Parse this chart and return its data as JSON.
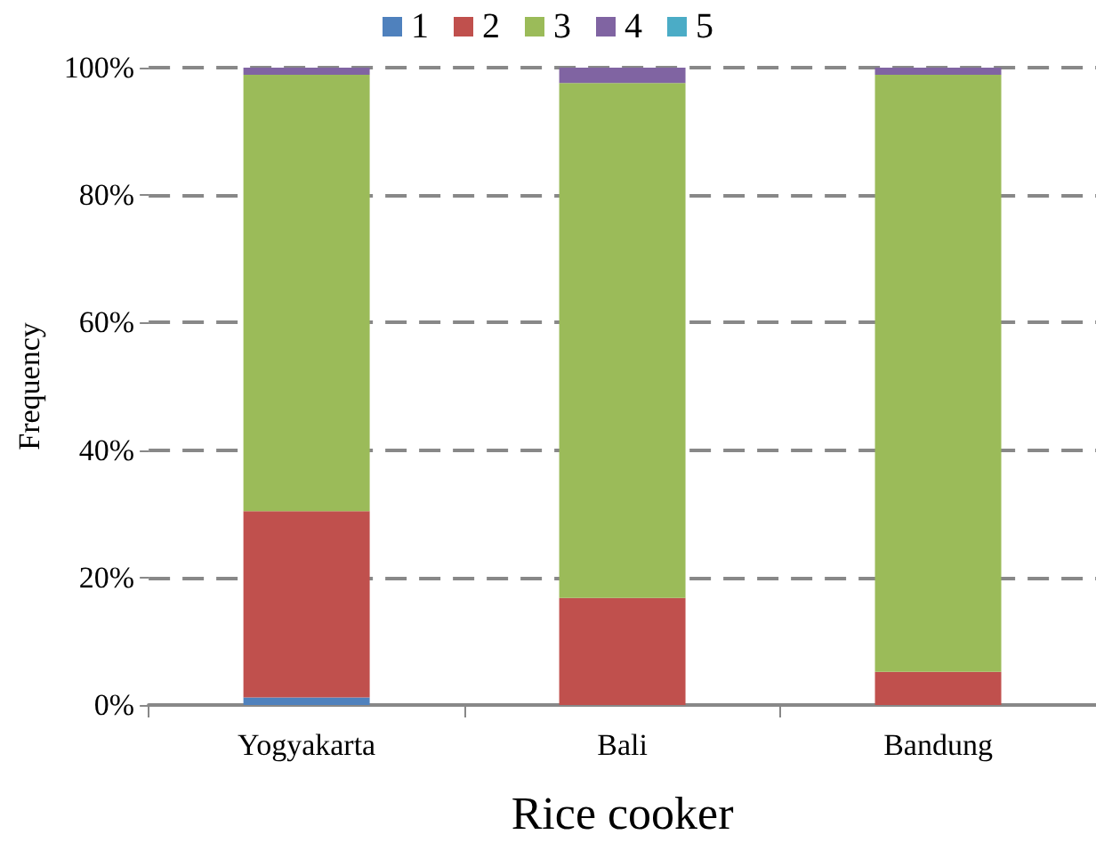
{
  "chart_data": {
    "type": "bar",
    "stacked": true,
    "xlabel": "Rice cooker",
    "ylabel": "Frequency",
    "categories": [
      "Yogyakarta",
      "Bali",
      "Bandung"
    ],
    "series": [
      {
        "name": "1",
        "color": "#4f81bd",
        "values": [
          1.2,
          0,
          0
        ]
      },
      {
        "name": "2",
        "color": "#c0504d",
        "values": [
          29.2,
          16.8,
          5.2
        ]
      },
      {
        "name": "3",
        "color": "#9bbb59",
        "values": [
          68.5,
          80.8,
          93.7
        ]
      },
      {
        "name": "4",
        "color": "#8064a2",
        "values": [
          1.1,
          2.4,
          1.1
        ]
      },
      {
        "name": "5",
        "color": "#4bacc6",
        "values": [
          0,
          0,
          0
        ]
      }
    ],
    "ylim": [
      0,
      100
    ],
    "yticks": [
      {
        "value": 0,
        "label": "0%"
      },
      {
        "value": 20,
        "label": "20%"
      },
      {
        "value": 40,
        "label": "40%"
      },
      {
        "value": 60,
        "label": "60%"
      },
      {
        "value": 80,
        "label": "80%"
      },
      {
        "value": 100,
        "label": "100%"
      }
    ],
    "grid": "y",
    "legend": "top"
  }
}
